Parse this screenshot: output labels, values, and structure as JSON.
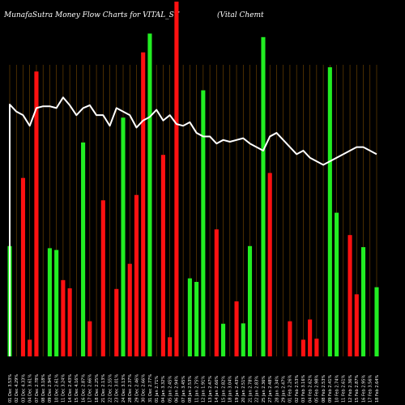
{
  "chart_data": {
    "type": "bar",
    "title": "MunafaSutra  Money Flow  Charts for VITAL_ST",
    "title_right": "(Vital Chemt",
    "colors": {
      "up": "#22ee22",
      "down": "#ff1111",
      "line": "#ffffff",
      "grid": "#7a4a00",
      "background": "#000000"
    },
    "ylim": [
      0,
      100
    ],
    "categories": [
      "Tue 01 Dec",
      "Wed 02 Dec",
      "Thu 03 Dec",
      "Fri 04 Dec",
      "Mon 07 Dec",
      "Tue 08 Dec",
      "Wed 09 Dec",
      "Thu 10 Dec",
      "Fri 11 Dec",
      "Mon 14 Dec",
      "Tue 15 Dec",
      "Wed 16 Dec",
      "Thu 17 Dec",
      "Fri 18 Dec",
      "Mon 21 Dec",
      "Tue 22 Dec",
      "Wed 23 Dec",
      "Thu 24 Dec",
      "Mon 28 Dec",
      "Tue 29 Dec",
      "Wed 30 Dec",
      "Thu 31 Dec",
      "Fri 01 Jan",
      "Mon 04 Jan",
      "Tue 05 Jan",
      "Wed 06 Jan",
      "Thu 07 Jan",
      "Fri 08 Jan",
      "Mon 11 Jan",
      "Tue 12 Jan",
      "Wed 13 Jan",
      "Thu 14 Jan",
      "Fri 15 Jan",
      "Mon 18 Jan",
      "Tue 19 Jan",
      "Wed 20 Jan",
      "Thu 21 Jan",
      "Fri 22 Jan",
      "Mon 25 Jan",
      "Wed 27 Jan",
      "Thu 28 Jan",
      "Fri 29 Jan",
      "Mon 01 Feb",
      "Tue 02 Feb",
      "Wed 03 Feb",
      "Thu 04 Feb",
      "Fri 05 Feb",
      "Mon 08 Feb",
      "Tue 09 Feb",
      "Wed 10 Feb",
      "Thu 11 Feb",
      "Fri 12 Feb",
      "Mon 15 Feb",
      "Tue 16 Feb",
      "Wed 17 Feb",
      "Thu 18 Feb"
    ],
    "x_tick_labels": [
      "01 Dec 3.53%",
      "02 Dec 4.29%",
      "03 Dec 4.33%",
      "04 Dec 3.61%",
      "07 Dec 2.78%",
      "08 Dec 3.18%",
      "09 Dec 2.94%",
      "10 Dec 2.61%",
      "11 Dec 3.24%",
      "14 Dec 2.43%",
      "15 Dec 4.16%",
      "16 Dec 2.87%",
      "17 Dec 2.66%",
      "18 Dec 2.25%",
      "21 Dec 2.13%",
      "22 Dec 2.55%",
      "23 Dec 3.01%",
      "24 Dec 3.13%",
      "28 Dec 2.37%",
      "29 Dec 2.46%",
      "30 Dec 2.66%",
      "31 Dec 2.77%",
      "01 Jan 2.71%",
      "04 Jan 3.32%",
      "05 Jan 2.45%",
      "06 Jan 2.94%",
      "07 Jan 3.45%",
      "08 Jan 2.53%",
      "11 Jan 2.75%",
      "12 Jan 1.91%",
      "13 Jan 2.47%",
      "14 Jan 2.66%",
      "15 Jan 2.82%",
      "18 Jan 3.04%",
      "19 Jan 2.43%",
      "20 Jan 2.51%",
      "21 Jan 2.78%",
      "22 Jan 2.83%",
      "25 Jan 2.36%",
      "27 Jan 2.48%",
      "28 Jan 3.34%",
      "29 Jan 2.47%",
      "01 Feb 2.26%",
      "02 Feb 2.53%",
      "03 Feb 3.16%",
      "04 Feb 2.62%",
      "05 Feb 2.98%",
      "08 Feb 2.53%",
      "09 Feb 2.41%",
      "10 Feb 2.74%",
      "11 Feb 2.61%",
      "12 Feb 2.36%",
      "15 Feb 2.87%",
      "16 Feb 2.95%",
      "17 Feb 3.56%",
      "18 Feb 2.64%"
    ],
    "series": [
      {
        "name": "",
        "kind": "bar",
        "values": [
          31.1,
          0,
          50.3,
          4.7,
          80.3,
          0,
          30.5,
          30,
          21.5,
          19.2,
          0,
          60.3,
          9.9,
          0,
          44,
          0,
          19,
          67.3,
          26.1,
          45.5,
          85.7,
          91,
          0,
          56.8,
          5.4,
          100,
          0,
          22,
          21,
          75,
          0,
          35.8,
          9.2,
          0,
          15.5,
          9.3,
          31.1,
          0,
          90,
          51.7,
          0,
          0,
          9.9,
          0,
          4.7,
          10.4,
          5,
          0,
          81.5,
          40.5,
          0,
          34.2,
          17.5,
          30.8,
          0,
          19.5
        ],
        "colors": [
          "up",
          "up",
          "down",
          "down",
          "down",
          "up",
          "up",
          "up",
          "down",
          "down",
          "up",
          "up",
          "down",
          "up",
          "down",
          "up",
          "down",
          "up",
          "down",
          "down",
          "down",
          "up",
          "up",
          "down",
          "down",
          "down",
          "up",
          "up",
          "up",
          "up",
          "up",
          "down",
          "up",
          "up",
          "down",
          "up",
          "up",
          "up",
          "up",
          "down",
          "down",
          "up",
          "down",
          "up",
          "down",
          "down",
          "down",
          "up",
          "up",
          "up",
          "up",
          "down",
          "down",
          "up",
          "up",
          "up"
        ]
      },
      {
        "name": "",
        "kind": "line",
        "values": [
          71,
          69,
          68,
          65,
          70,
          70.5,
          70.5,
          70,
          73,
          70.8,
          68,
          70,
          70.8,
          68,
          68,
          65,
          70,
          69,
          68,
          64.5,
          66.5,
          67.5,
          69.5,
          66.5,
          68,
          65.5,
          65,
          66,
          63,
          62,
          62,
          60,
          61,
          60.5,
          61,
          61.5,
          60,
          59,
          58,
          62,
          63,
          61,
          59,
          57,
          58,
          56,
          55,
          54,
          55,
          56,
          57,
          58,
          59,
          59,
          58,
          57
        ]
      }
    ]
  }
}
